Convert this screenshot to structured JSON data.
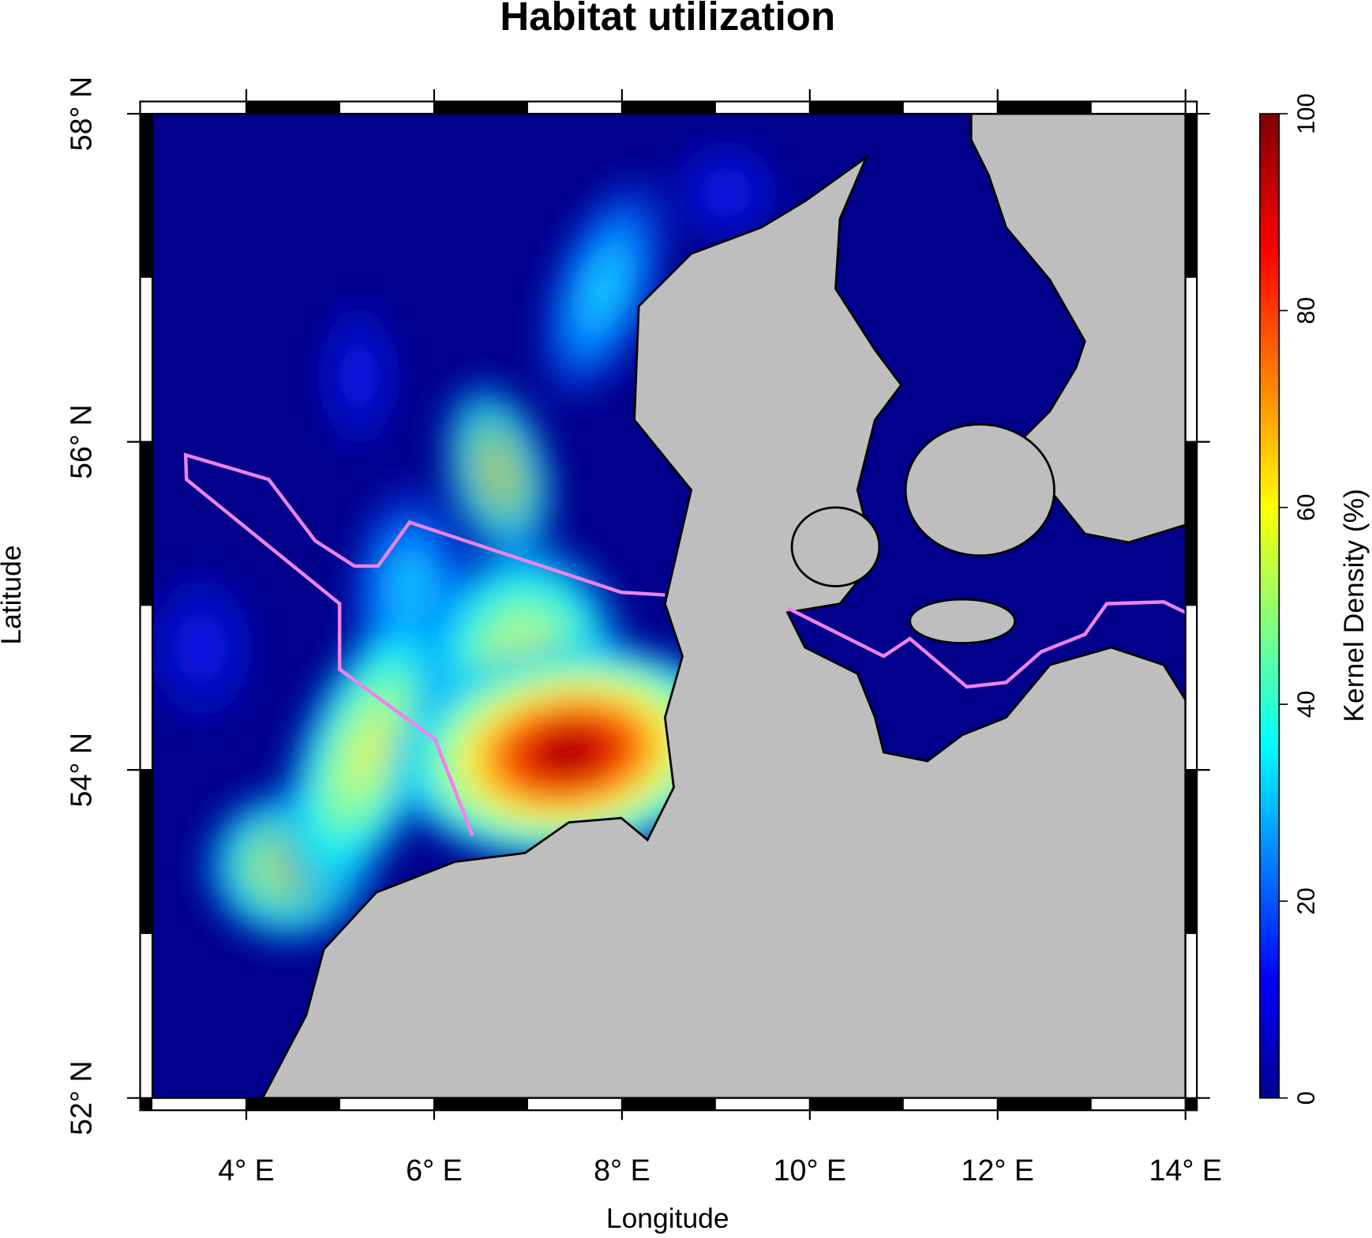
{
  "title": "Habitat utilization",
  "x_axis": {
    "label": "Longitude",
    "lim": [
      3,
      14
    ],
    "ticks": [
      {
        "value": 4,
        "label": "4° E"
      },
      {
        "value": 6,
        "label": "6° E"
      },
      {
        "value": 8,
        "label": "8° E"
      },
      {
        "value": 10,
        "label": "10° E"
      },
      {
        "value": 12,
        "label": "12° E"
      },
      {
        "value": 14,
        "label": "14° E"
      }
    ]
  },
  "y_axis": {
    "label": "Latitude",
    "lim": [
      52,
      58
    ],
    "ticks": [
      {
        "value": 52,
        "label": "52° N"
      },
      {
        "value": 54,
        "label": "54° N"
      },
      {
        "value": 56,
        "label": "56° N"
      },
      {
        "value": 58,
        "label": "58° N"
      }
    ]
  },
  "colorbar": {
    "label": "Kernel Density (%)",
    "lim": [
      0,
      100
    ],
    "ticks": [
      0,
      20,
      40,
      60,
      80,
      100
    ]
  }
}
